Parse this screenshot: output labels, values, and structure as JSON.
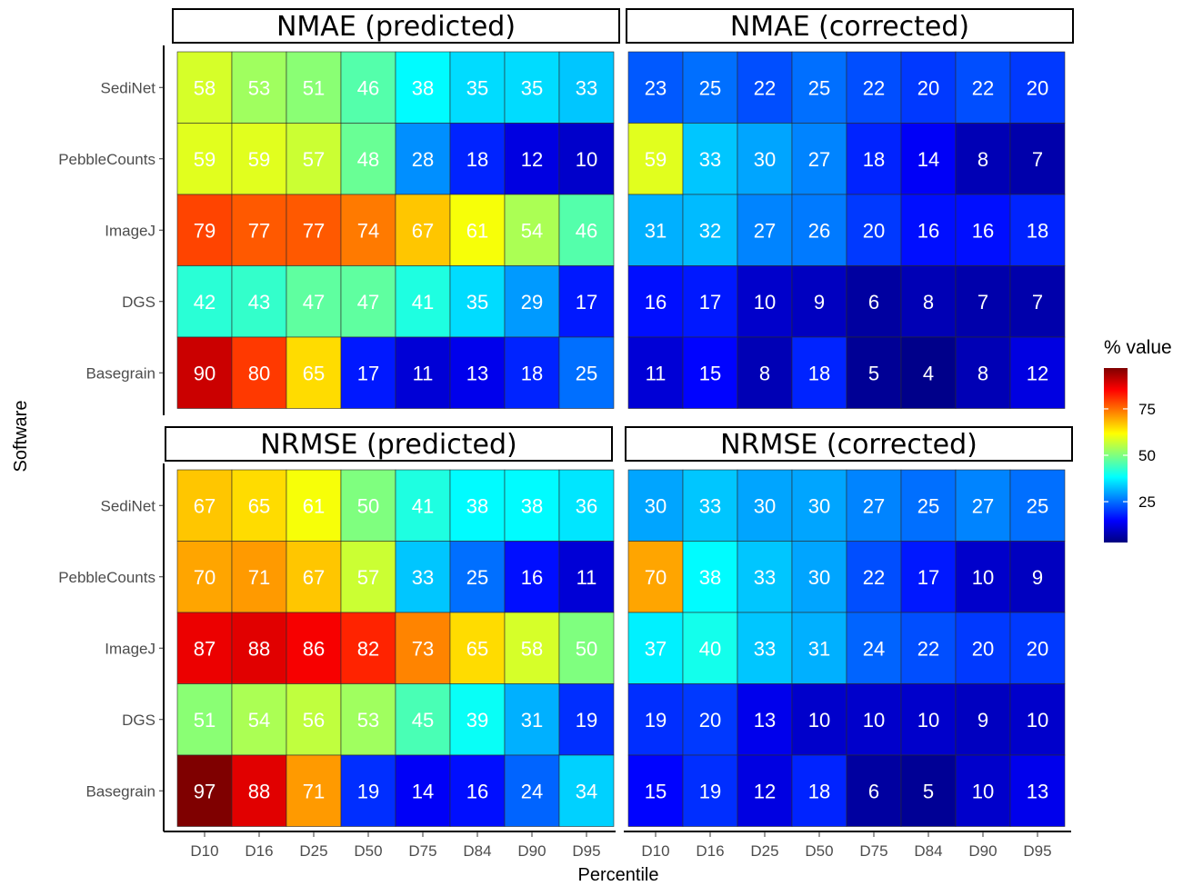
{
  "chart_data": {
    "type": "heatmap",
    "xlabel": "Percentile",
    "ylabel": "Software",
    "categories": [
      "D10",
      "D16",
      "D25",
      "D50",
      "D75",
      "D84",
      "D90",
      "D95"
    ],
    "rows": [
      "SediNet",
      "PebbleCounts",
      "ImageJ",
      "DGS",
      "Basegrain"
    ],
    "legend": {
      "title": "% value",
      "ticks": [
        25,
        50,
        75
      ],
      "range": [
        3,
        97
      ],
      "placement": "right"
    },
    "color_scale": [
      "#00007f",
      "#0000ff",
      "#007fff",
      "#00ffff",
      "#7fff7f",
      "#ffff00",
      "#ff7f00",
      "#ff0000",
      "#7f0000"
    ],
    "panels": [
      {
        "title": "NMAE (predicted)",
        "values": [
          [
            58,
            53,
            51,
            46,
            38,
            35,
            35,
            33
          ],
          [
            59,
            59,
            57,
            48,
            28,
            18,
            12,
            10
          ],
          [
            79,
            77,
            77,
            74,
            67,
            61,
            54,
            46
          ],
          [
            42,
            43,
            47,
            47,
            41,
            35,
            29,
            17
          ],
          [
            90,
            80,
            65,
            17,
            11,
            13,
            18,
            25
          ]
        ]
      },
      {
        "title": "NMAE (corrected)",
        "values": [
          [
            23,
            25,
            22,
            25,
            22,
            20,
            22,
            20
          ],
          [
            59,
            33,
            30,
            27,
            18,
            14,
            8,
            7
          ],
          [
            31,
            32,
            27,
            26,
            20,
            16,
            16,
            18
          ],
          [
            16,
            17,
            10,
            9,
            6,
            8,
            7,
            7
          ],
          [
            11,
            15,
            8,
            18,
            5,
            4,
            8,
            12
          ]
        ]
      },
      {
        "title": "NRMSE (predicted)",
        "values": [
          [
            67,
            65,
            61,
            50,
            41,
            38,
            38,
            36
          ],
          [
            70,
            71,
            67,
            57,
            33,
            25,
            16,
            11
          ],
          [
            87,
            88,
            86,
            82,
            73,
            65,
            58,
            50
          ],
          [
            51,
            54,
            56,
            53,
            45,
            39,
            31,
            19
          ],
          [
            97,
            88,
            71,
            19,
            14,
            16,
            24,
            34
          ]
        ]
      },
      {
        "title": "NRMSE (corrected)",
        "values": [
          [
            30,
            33,
            30,
            30,
            27,
            25,
            27,
            25
          ],
          [
            70,
            38,
            33,
            30,
            22,
            17,
            10,
            9
          ],
          [
            37,
            40,
            33,
            31,
            24,
            22,
            20,
            20
          ],
          [
            19,
            20,
            13,
            10,
            10,
            10,
            9,
            10
          ],
          [
            15,
            19,
            12,
            18,
            6,
            5,
            10,
            13
          ]
        ]
      }
    ]
  }
}
